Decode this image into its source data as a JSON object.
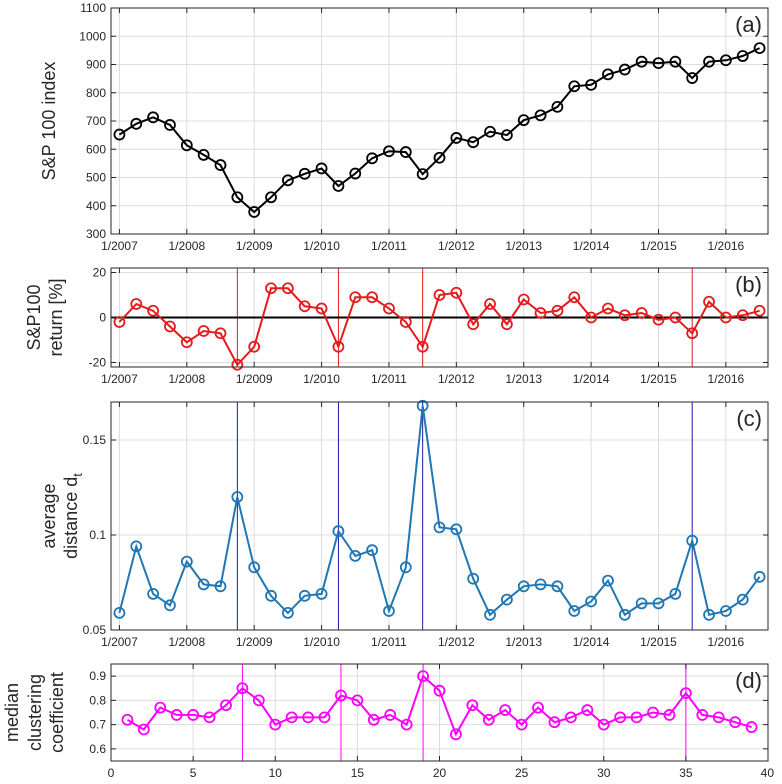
{
  "chart_data": [
    {
      "type": "line",
      "panel_label": "(a)",
      "ylabel": [
        "S&P 100 index"
      ],
      "ylim": [
        300,
        1100
      ],
      "yticks": [
        300,
        400,
        500,
        600,
        700,
        800,
        900,
        1000,
        1100
      ],
      "xlim": [
        0.5,
        39.5
      ],
      "xtick_positions": [
        1,
        5,
        9,
        13,
        17,
        21,
        25,
        29,
        33,
        37
      ],
      "xtick_labels": [
        "1/2007",
        "1/2008",
        "1/2009",
        "1/2010",
        "1/2011",
        "1/2012",
        "1/2013",
        "1/2014",
        "1/2015",
        "1/2016"
      ],
      "grid": true,
      "color": "#000000",
      "series": [
        {
          "x": [
            1,
            2,
            3,
            4,
            5,
            6,
            7,
            8,
            9,
            10,
            11,
            12,
            13,
            14,
            15,
            16,
            17,
            18,
            19,
            20,
            21,
            22,
            23,
            24,
            25,
            26,
            27,
            28,
            29,
            30,
            31,
            32,
            33,
            34,
            35,
            36,
            37,
            38,
            39
          ],
          "values": [
            652,
            690,
            713,
            686,
            614,
            580,
            544,
            430,
            378,
            430,
            490,
            513,
            532,
            470,
            514,
            568,
            593,
            590,
            512,
            570,
            640,
            625,
            662,
            650,
            703,
            720,
            750,
            823,
            828,
            865,
            882,
            910,
            905,
            910,
            852,
            910,
            915,
            930,
            958
          ]
        }
      ]
    },
    {
      "type": "line",
      "panel_label": "(b)",
      "ylabel": [
        "S&P100",
        "return [%]"
      ],
      "ylim": [
        -22,
        22
      ],
      "yticks": [
        -20,
        0,
        20
      ],
      "xlim": [
        0.5,
        39.5
      ],
      "xtick_positions": [
        1,
        5,
        9,
        13,
        17,
        21,
        25,
        29,
        33,
        37
      ],
      "xtick_labels": [
        "1/2007",
        "1/2008",
        "1/2009",
        "1/2010",
        "1/2011",
        "1/2012",
        "1/2013",
        "1/2014",
        "1/2015",
        "1/2016"
      ],
      "grid": true,
      "color": "#e41a1c",
      "zero_line": true,
      "vlines": [
        8,
        14,
        19,
        35
      ],
      "series": [
        {
          "x": [
            1,
            2,
            3,
            4,
            5,
            6,
            7,
            8,
            9,
            10,
            11,
            12,
            13,
            14,
            15,
            16,
            17,
            18,
            19,
            20,
            21,
            22,
            23,
            24,
            25,
            26,
            27,
            28,
            29,
            30,
            31,
            32,
            33,
            34,
            35,
            36,
            37,
            38,
            39
          ],
          "values": [
            -2,
            6,
            3,
            -4,
            -11,
            -6,
            -7,
            -21,
            -13,
            13,
            13,
            5,
            4,
            -13,
            9,
            9,
            4,
            -2,
            -13,
            10,
            11,
            -3,
            6,
            -3,
            8,
            2,
            3,
            9,
            0,
            4,
            1,
            2,
            -1,
            0,
            -7,
            7,
            0,
            1,
            3
          ]
        }
      ]
    },
    {
      "type": "line",
      "panel_label": "(c)",
      "ylabel": [
        "average",
        "distance d_t"
      ],
      "ylim": [
        0.05,
        0.17
      ],
      "yticks": [
        0.05,
        0.1,
        0.15
      ],
      "ytick_labels": [
        "0.05",
        "0.1",
        "0.15"
      ],
      "xlim": [
        0.5,
        39.5
      ],
      "xtick_positions": [
        1,
        5,
        9,
        13,
        17,
        21,
        25,
        29,
        33,
        37
      ],
      "xtick_labels": [
        "1/2007",
        "1/2008",
        "1/2009",
        "1/2010",
        "1/2011",
        "1/2012",
        "1/2013",
        "1/2014",
        "1/2015",
        "1/2016"
      ],
      "grid": true,
      "color": "#1f77b4",
      "vlines": [
        8,
        14,
        19,
        35
      ],
      "series": [
        {
          "x": [
            1,
            2,
            3,
            4,
            5,
            6,
            7,
            8,
            9,
            10,
            11,
            12,
            13,
            14,
            15,
            16,
            17,
            18,
            19,
            20,
            21,
            22,
            23,
            24,
            25,
            26,
            27,
            28,
            29,
            30,
            31,
            32,
            33,
            34,
            35,
            36,
            37,
            38,
            39
          ],
          "values": [
            0.059,
            0.094,
            0.069,
            0.063,
            0.086,
            0.074,
            0.073,
            0.12,
            0.083,
            0.068,
            0.059,
            0.068,
            0.069,
            0.102,
            0.089,
            0.092,
            0.06,
            0.083,
            0.168,
            0.104,
            0.103,
            0.077,
            0.058,
            0.066,
            0.073,
            0.074,
            0.073,
            0.06,
            0.065,
            0.076,
            0.058,
            0.064,
            0.064,
            0.069,
            0.097,
            0.058,
            0.06,
            0.066,
            0.078
          ]
        }
      ]
    },
    {
      "type": "line",
      "panel_label": "(d)",
      "ylabel": [
        "median",
        "clustering",
        "coefficient"
      ],
      "ylim": [
        0.55,
        0.95
      ],
      "yticks": [
        0.6,
        0.7,
        0.8,
        0.9
      ],
      "ytick_labels": [
        "0.6",
        "0.7",
        "0.8",
        "0.9"
      ],
      "xlim": [
        0,
        40
      ],
      "xtick_positions": [
        0,
        5,
        10,
        15,
        20,
        25,
        30,
        35,
        40
      ],
      "xtick_labels": [
        "0",
        "5",
        "10",
        "15",
        "20",
        "25",
        "30",
        "35",
        "40"
      ],
      "grid": true,
      "color": "#ff00ff",
      "vlines": [
        8,
        14,
        19,
        35
      ],
      "series": [
        {
          "x": [
            1,
            2,
            3,
            4,
            5,
            6,
            7,
            8,
            9,
            10,
            11,
            12,
            13,
            14,
            15,
            16,
            17,
            18,
            19,
            20,
            21,
            22,
            23,
            24,
            25,
            26,
            27,
            28,
            29,
            30,
            31,
            32,
            33,
            34,
            35,
            36,
            37,
            38,
            39
          ],
          "values": [
            0.72,
            0.68,
            0.77,
            0.74,
            0.74,
            0.73,
            0.78,
            0.85,
            0.8,
            0.7,
            0.73,
            0.73,
            0.73,
            0.82,
            0.8,
            0.72,
            0.74,
            0.7,
            0.9,
            0.84,
            0.66,
            0.78,
            0.72,
            0.76,
            0.7,
            0.77,
            0.71,
            0.73,
            0.76,
            0.7,
            0.73,
            0.73,
            0.75,
            0.74,
            0.83,
            0.74,
            0.73,
            0.71,
            0.69
          ]
        }
      ]
    }
  ]
}
